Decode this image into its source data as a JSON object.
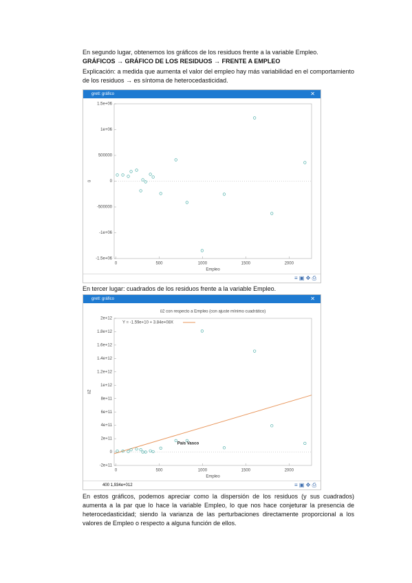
{
  "intro": [
    "En segundo lugar, obtenemos los gráficos de los residuos frente a la variable Empleo.",
    "GRÁFICOS → GRÁFICO DE LOS RESIDUOS → FRENTE A EMPLEO",
    "Explicación: a medida que aumenta el valor del empleo hay más variabilidad en el comportamiento de los residuos → es síntoma de heterocedasticidad."
  ],
  "figures": [
    {
      "window_title": "gretl: gráfico",
      "chart_data": {
        "type": "scatter",
        "x_label": "Empleo",
        "y_label": "û",
        "color": "#3aa6a0",
        "zero_line": true,
        "x": [
          16,
          80,
          143,
          175,
          239,
          287,
          311,
          343,
          398,
          430,
          518,
          693,
          821,
          996,
          1251,
          1602,
          1801,
          2183
        ],
        "values": [
          120000,
          120000,
          93000,
          187000,
          213000,
          -187000,
          27000,
          -13000,
          133000,
          80000,
          -240000,
          413000,
          -413000,
          -1347000,
          -253000,
          1227000,
          -627000,
          360000
        ],
        "xlim": [
          -20,
          2260
        ],
        "xticks": [
          0,
          500,
          1000,
          1500,
          2000
        ],
        "ylim": [
          -1500000,
          1500000
        ],
        "yticks": [
          {
            "value": -1500000,
            "label": "-1.5e+06"
          },
          {
            "value": -1000000,
            "label": "-1e+06"
          },
          -500000,
          0,
          500000,
          {
            "value": 1000000,
            "label": "1e+06"
          },
          {
            "value": 1500000,
            "label": "1.5e+06"
          }
        ]
      }
    },
    {
      "window_title": "gretl: gráfico",
      "status": "400 1,934e+012",
      "chart_data": {
        "type": "scatter",
        "title": "û2 con respecto a Empleo (con ajuste mínimo cuadrático)",
        "x_label": "Empleo",
        "y_label": "û2",
        "color": "#3aa6a0",
        "zero_line": true,
        "x": [
          16,
          80,
          143,
          175,
          239,
          287,
          311,
          343,
          398,
          430,
          518,
          693,
          821,
          996,
          1251,
          1602,
          1801,
          2183
        ],
        "values": [
          14400000000,
          14400000000,
          8600000000,
          35000000000,
          45000000000,
          35000000000,
          700000000,
          200000000,
          18000000000,
          6400000000,
          58000000000,
          171000000000,
          171000000000,
          1810000000000,
          64000000000,
          1510000000000,
          393000000000,
          130000000000
        ],
        "fit": {
          "intercept": -15900000000,
          "slope": 384000000,
          "label": "Y = -1.59e+10 + 3.84e+08X",
          "color": "#e8955a"
        },
        "annotation": {
          "text": "País Vasco",
          "x": 693,
          "y": 171000000000
        },
        "xlim": [
          -20,
          2260
        ],
        "xticks": [
          0,
          500,
          1000,
          1500,
          2000
        ],
        "ylim": [
          -200000000000,
          2000000000000
        ],
        "yticks": [
          {
            "value": -200000000000,
            "label": "-2e+11"
          },
          0,
          {
            "value": 200000000000,
            "label": "2e+11"
          },
          {
            "value": 400000000000,
            "label": "4e+11"
          },
          {
            "value": 600000000000,
            "label": "6e+11"
          },
          {
            "value": 800000000000,
            "label": "8e+11"
          },
          {
            "value": 1000000000000,
            "label": "1e+12"
          },
          {
            "value": 1200000000000,
            "label": "1.2e+12"
          },
          {
            "value": 1400000000000,
            "label": "1.4e+12"
          },
          {
            "value": 1600000000000,
            "label": "1.6e+12"
          },
          {
            "value": 1800000000000,
            "label": "1.8e+12"
          },
          {
            "value": 2000000000000,
            "label": "2e+12"
          }
        ]
      }
    }
  ],
  "middle_text": "En tercer lugar: cuadrados de los residuos frente a la variable Empleo.",
  "conclusion": "En estos gráficos, podemos apreciar como la dispersión de los residuos (y sus cuadrados) aumenta a la par que lo hace la variable Empleo, lo que nos hace conjeturar la presencia de heterocedasticidad; siendo la varianza de las perturbaciones directamente proporcional a los valores de Empleo o respecto a alguna función de ellos."
}
